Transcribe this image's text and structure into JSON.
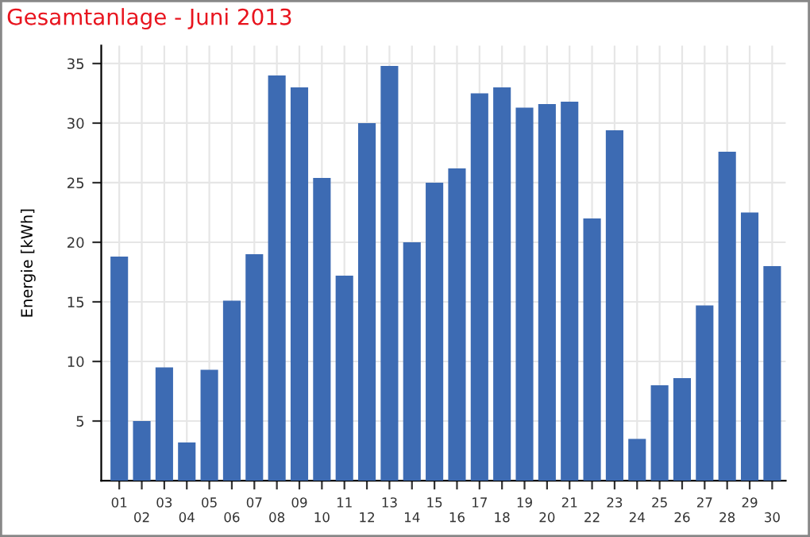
{
  "chart_data": {
    "type": "bar",
    "title": "Gesamtanlage - Juni 2013",
    "ylabel": "Energie [kWh]",
    "categories": [
      "01",
      "02",
      "03",
      "04",
      "05",
      "06",
      "07",
      "08",
      "09",
      "10",
      "11",
      "12",
      "13",
      "14",
      "15",
      "16",
      "17",
      "18",
      "19",
      "20",
      "21",
      "22",
      "23",
      "24",
      "25",
      "26",
      "27",
      "28",
      "29",
      "30"
    ],
    "values": [
      18.8,
      5.0,
      9.5,
      3.2,
      9.3,
      15.1,
      19.0,
      34.0,
      33.0,
      25.4,
      17.2,
      30.0,
      34.8,
      20.0,
      25.0,
      26.2,
      32.5,
      33.0,
      31.3,
      31.6,
      31.8,
      22.0,
      29.4,
      3.5,
      8.0,
      8.6,
      14.7,
      27.6,
      22.5,
      18.0
    ],
    "color": "#3d6bb3",
    "ylim": [
      0,
      36.5
    ],
    "yticks": [
      5,
      10,
      15,
      20,
      25,
      30,
      35
    ],
    "grid": true
  }
}
